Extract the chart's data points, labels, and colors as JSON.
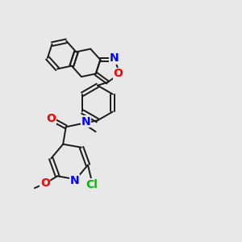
{
  "bg_color": "#e8e8e8",
  "bond_color": "#1a1a1a",
  "atom_colors": {
    "N": "#0000ff",
    "O": "#ff0000",
    "Cl": "#00bb00",
    "C": "#1a1a1a"
  },
  "figsize": [
    3.0,
    3.0
  ],
  "dpi": 100
}
